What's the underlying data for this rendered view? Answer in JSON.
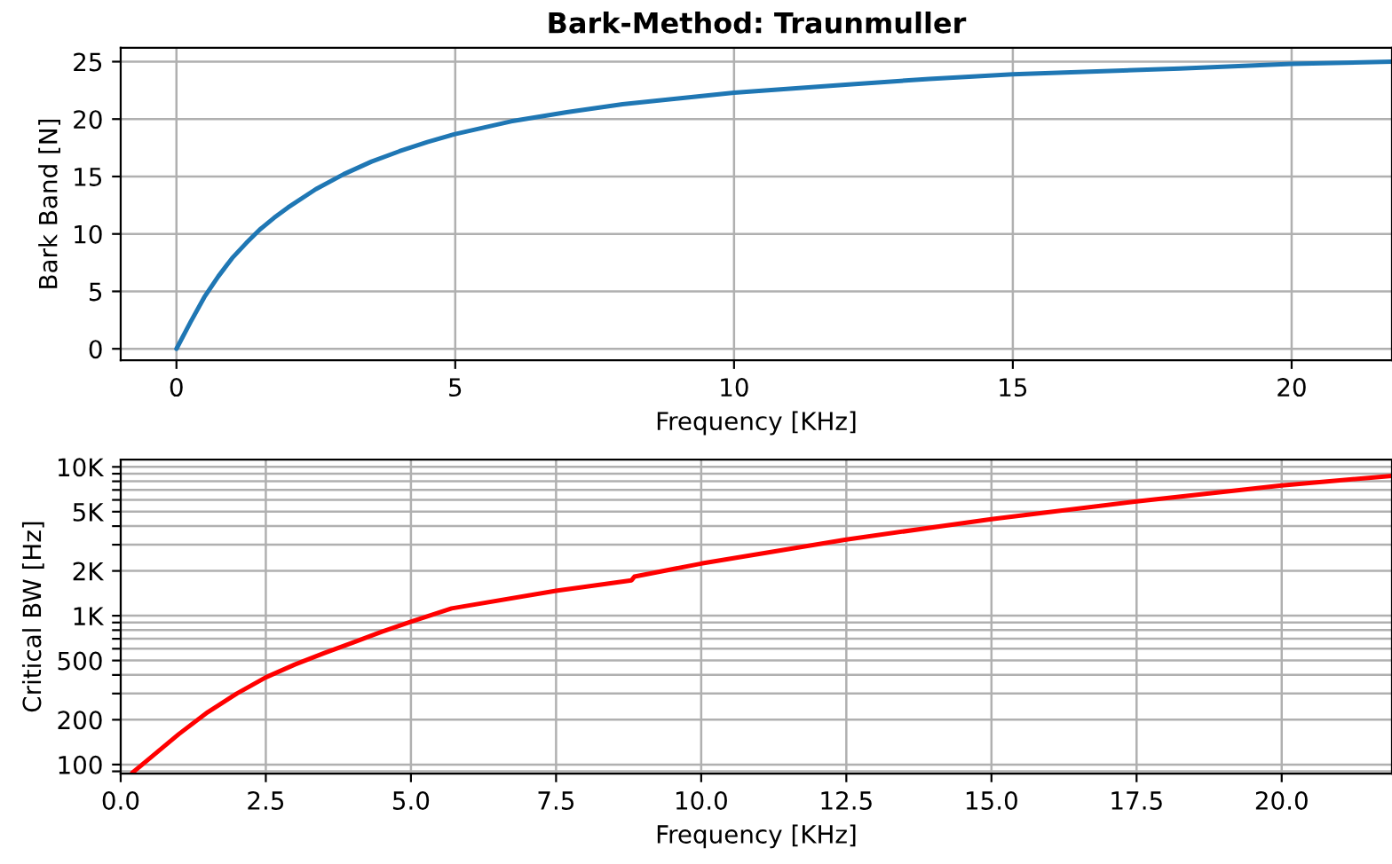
{
  "chart_data": [
    {
      "type": "line",
      "title": "Bark-Method: Traunmuller",
      "xlabel": "Frequency [KHz]",
      "ylabel": "Bark Band [N]",
      "series": [
        {
          "color": "#1f77b4",
          "x": [
            0,
            0.25,
            0.5,
            0.75,
            1,
            1.25,
            1.5,
            1.75,
            2,
            2.5,
            3,
            3.5,
            4,
            4.5,
            5,
            6,
            7,
            8,
            9,
            10,
            12,
            13.5,
            15,
            18,
            20,
            21.8
          ],
          "values": [
            0,
            2.3,
            4.5,
            6.3,
            7.9,
            9.2,
            10.4,
            11.4,
            12.3,
            13.9,
            15.2,
            16.3,
            17.2,
            18.0,
            18.7,
            19.8,
            20.6,
            21.3,
            21.8,
            22.3,
            23.0,
            23.5,
            23.9,
            24.4,
            24.8,
            25.0
          ]
        }
      ],
      "xlim": [
        -1,
        21.8
      ],
      "ylim": [
        -1,
        26.2
      ],
      "xticks": [
        0,
        5,
        10,
        15,
        20
      ],
      "yticks": [
        0,
        5,
        10,
        15,
        20,
        25
      ],
      "grid": true
    },
    {
      "type": "line",
      "xlabel": "Frequency [KHz]",
      "ylabel": "Critical BW [Hz]",
      "log": "y",
      "series": [
        {
          "color": "#ff0000",
          "x": [
            0.2,
            0.5,
            1,
            1.5,
            2,
            2.5,
            3,
            3.5,
            4,
            4.5,
            5,
            5.7,
            7.5,
            8.8,
            8.85,
            10,
            12.5,
            15,
            17.5,
            20,
            21.9
          ],
          "values": [
            88,
            110,
            160,
            225,
            300,
            385,
            470,
            560,
            660,
            780,
            910,
            1120,
            1470,
            1730,
            1830,
            2240,
            3250,
            4460,
            5860,
            7500,
            8710
          ]
        }
      ],
      "xlim": [
        0,
        21.9
      ],
      "ylim": [
        87,
        11200
      ],
      "xticks": [
        {
          "value": 0,
          "label": "0.0"
        },
        2.5,
        {
          "value": 5,
          "label": "5.0"
        },
        7.5,
        {
          "value": 10,
          "label": "10.0"
        },
        12.5,
        {
          "value": 15,
          "label": "15.0"
        },
        17.5,
        {
          "value": 20,
          "label": "20.0"
        }
      ],
      "yticks": [
        {
          "value": 90,
          "label": null
        },
        {
          "value": 100,
          "label": "100"
        },
        {
          "value": 200,
          "label": "200"
        },
        {
          "value": 300,
          "label": null
        },
        {
          "value": 400,
          "label": null
        },
        {
          "value": 500,
          "label": "500"
        },
        {
          "value": 600,
          "label": null
        },
        {
          "value": 700,
          "label": null
        },
        {
          "value": 800,
          "label": null
        },
        {
          "value": 900,
          "label": null
        },
        {
          "value": 1000,
          "label": "1K"
        },
        {
          "value": 2000,
          "label": "2K"
        },
        {
          "value": 3000,
          "label": null
        },
        {
          "value": 4000,
          "label": null
        },
        {
          "value": 5000,
          "label": "5K"
        },
        {
          "value": 6000,
          "label": null
        },
        {
          "value": 7000,
          "label": null
        },
        {
          "value": 8000,
          "label": null
        },
        {
          "value": 9000,
          "label": null
        },
        {
          "value": 10000,
          "label": "10K"
        }
      ],
      "grid": true
    }
  ]
}
